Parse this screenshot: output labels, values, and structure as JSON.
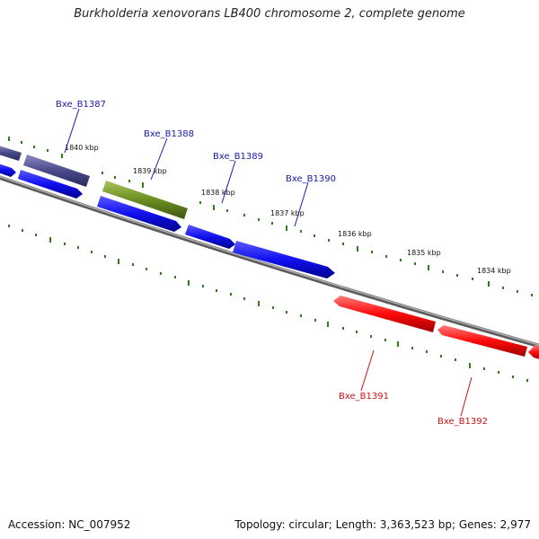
{
  "title": "Burkholderia xenovorans LB400 chromosome 2, complete genome",
  "footer": {
    "accession": "Accession: NC_007952",
    "topology": "Topology: circular; Length: 3,363,523 bp; Genes: 2,977"
  },
  "colors": {
    "backbone": "#808080",
    "tick": "#2e7d1e",
    "forward": "#1010f0",
    "reverse": "#ff0a0a",
    "highlight_purple": "#4a4a8c",
    "highlight_green": "#6b8e23",
    "forward_label": "#1a1aa8",
    "reverse_label": "#cc1111"
  },
  "ticks": [
    "1840 kbp",
    "1839 kbp",
    "1838 kbp",
    "1837 kbp",
    "1836 kbp",
    "1835 kbp",
    "1834 kbp"
  ],
  "genes": [
    {
      "id": "Bxe_B1387",
      "strand": "forward",
      "color": "#1a1aa8"
    },
    {
      "id": "Bxe_B1388",
      "strand": "forward",
      "color": "#1a1aa8"
    },
    {
      "id": "Bxe_B1389",
      "strand": "forward",
      "color": "#1a1aa8"
    },
    {
      "id": "Bxe_B1390",
      "strand": "forward",
      "color": "#1a1aa8"
    },
    {
      "id": "Bxe_B1391",
      "strand": "reverse",
      "color": "#cc1111"
    },
    {
      "id": "Bxe_B1392",
      "strand": "reverse",
      "color": "#cc1111"
    }
  ]
}
